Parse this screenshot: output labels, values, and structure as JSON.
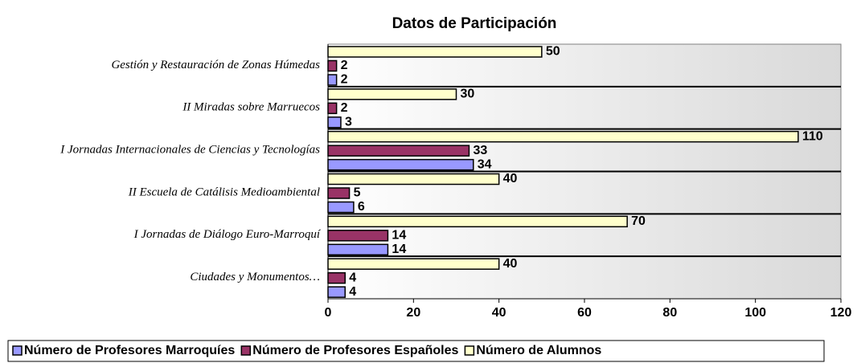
{
  "chart_data": {
    "type": "bar",
    "orientation": "horizontal",
    "title": "Datos de Participación",
    "categories": [
      "Gestión y Restauración de Zonas Húmedas",
      "II Miradas sobre Marruecos",
      "I Jornadas Internacionales de Ciencias y Tecnologías",
      "II Escuela de Catálisis Medioambiental",
      "I Jornadas de Diálogo Euro-Marroquí",
      "Ciudades y Monumentos…"
    ],
    "series": [
      {
        "name": "Número de Profesores Marroquíes",
        "color": "#9999ff",
        "values": [
          2,
          3,
          34,
          6,
          14,
          4
        ]
      },
      {
        "name": "Número de Profesores Españoles",
        "color": "#993366",
        "values": [
          2,
          2,
          33,
          5,
          14,
          4
        ]
      },
      {
        "name": "Número de Alumnos",
        "color": "#ffffcc",
        "values": [
          50,
          30,
          110,
          40,
          70,
          40
        ]
      }
    ],
    "xlim": [
      0,
      120
    ],
    "xticks": [
      0,
      20,
      40,
      60,
      80,
      100,
      120
    ],
    "legend": "bottom"
  }
}
